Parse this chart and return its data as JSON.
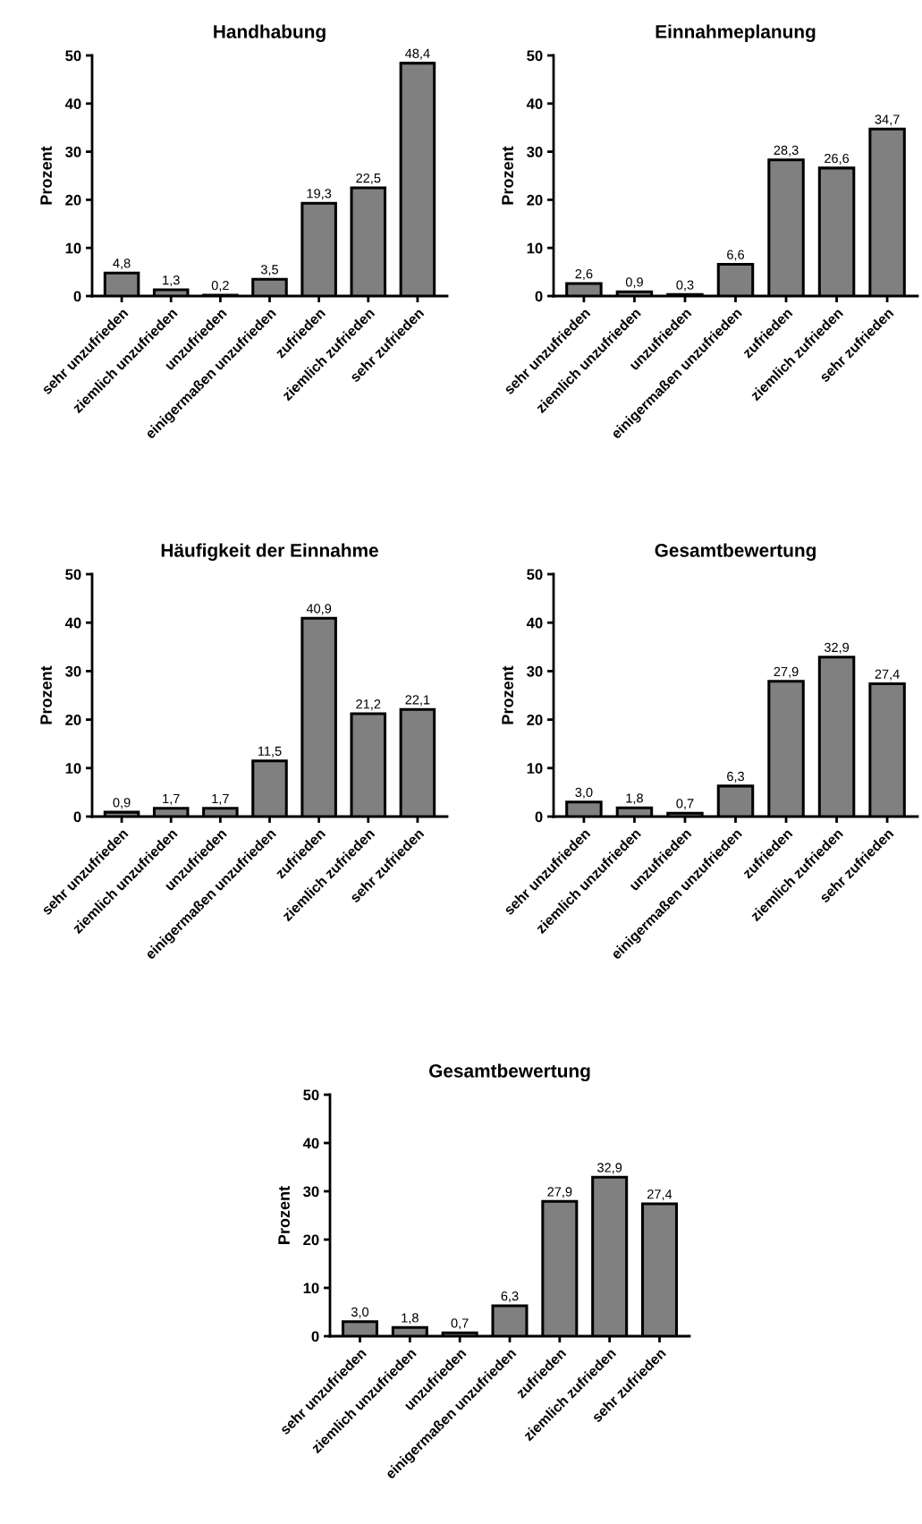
{
  "chart_data": [
    {
      "type": "bar",
      "title": "Handhabung",
      "ylabel": "Prozent",
      "categories": [
        "sehr unzufrieden",
        "ziemlich unzufrieden",
        "unzufrieden",
        "einigermaßen unzufrieden",
        "zufrieden",
        "ziemlich zufrieden",
        "sehr zufrieden"
      ],
      "color": "#808080",
      "values": [
        4.8,
        1.3,
        0.2,
        3.5,
        19.3,
        22.5,
        48.4
      ],
      "value_labels": [
        "4,8",
        "1,3",
        "0,2",
        "3,5",
        "19,3",
        "22,5",
        "48,4"
      ],
      "ylim": [
        0,
        50
      ],
      "yticks": [
        0,
        10,
        20,
        30,
        40,
        50
      ],
      "grid": false,
      "legend": false
    },
    {
      "type": "bar",
      "title": "Einnahmeplanung",
      "ylabel": "Prozent",
      "categories": [
        "sehr unzufrieden",
        "ziemlich unzufrieden",
        "unzufrieden",
        "einigermaßen unzufrieden",
        "zufrieden",
        "ziemlich zufrieden",
        "sehr zufrieden"
      ],
      "color": "#808080",
      "values": [
        2.6,
        0.9,
        0.3,
        6.6,
        28.3,
        26.6,
        34.7
      ],
      "value_labels": [
        "2,6",
        "0,9",
        "0,3",
        "6,6",
        "28,3",
        "26,6",
        "34,7"
      ],
      "ylim": [
        0,
        50
      ],
      "yticks": [
        0,
        10,
        20,
        30,
        40,
        50
      ],
      "grid": false,
      "legend": false
    },
    {
      "type": "bar",
      "title": "Häufigkeit der Einnahme",
      "ylabel": "Prozent",
      "categories": [
        "sehr unzufrieden",
        "ziemlich unzufrieden",
        "unzufrieden",
        "einigermaßen unzufrieden",
        "zufrieden",
        "ziemlich zufrieden",
        "sehr zufrieden"
      ],
      "color": "#808080",
      "values": [
        0.9,
        1.7,
        1.7,
        11.5,
        40.9,
        21.2,
        22.1
      ],
      "value_labels": [
        "0,9",
        "1,7",
        "1,7",
        "11,5",
        "40,9",
        "21,2",
        "22,1"
      ],
      "ylim": [
        0,
        50
      ],
      "yticks": [
        0,
        10,
        20,
        30,
        40,
        50
      ],
      "grid": false,
      "legend": false
    },
    {
      "type": "bar",
      "title": "Gesamtbewertung",
      "ylabel": "Prozent",
      "categories": [
        "sehr unzufrieden",
        "ziemlich unzufrieden",
        "unzufrieden",
        "einigermaßen unzufrieden",
        "zufrieden",
        "ziemlich zufrieden",
        "sehr zufrieden"
      ],
      "color": "#808080",
      "values": [
        3.0,
        1.8,
        0.7,
        6.3,
        27.9,
        32.9,
        27.4
      ],
      "value_labels": [
        "3,0",
        "1,8",
        "0,7",
        "6,3",
        "27,9",
        "32,9",
        "27,4"
      ],
      "ylim": [
        0,
        50
      ],
      "yticks": [
        0,
        10,
        20,
        30,
        40,
        50
      ],
      "grid": false,
      "legend": false
    },
    {
      "type": "bar",
      "title": "Gesamtbewertung",
      "ylabel": "Prozent",
      "categories": [
        "sehr unzufrieden",
        "ziemlich unzufrieden",
        "unzufrieden",
        "einigermaßen unzufrieden",
        "zufrieden",
        "ziemlich zufrieden",
        "sehr zufrieden"
      ],
      "color": "#808080",
      "values": [
        3.0,
        1.8,
        0.7,
        6.3,
        27.9,
        32.9,
        27.4
      ],
      "value_labels": [
        "3,0",
        "1,8",
        "0,7",
        "6,3",
        "27,9",
        "32,9",
        "27,4"
      ],
      "ylim": [
        0,
        50
      ],
      "yticks": [
        0,
        10,
        20,
        30,
        40,
        50
      ],
      "grid": false,
      "legend": false
    }
  ]
}
